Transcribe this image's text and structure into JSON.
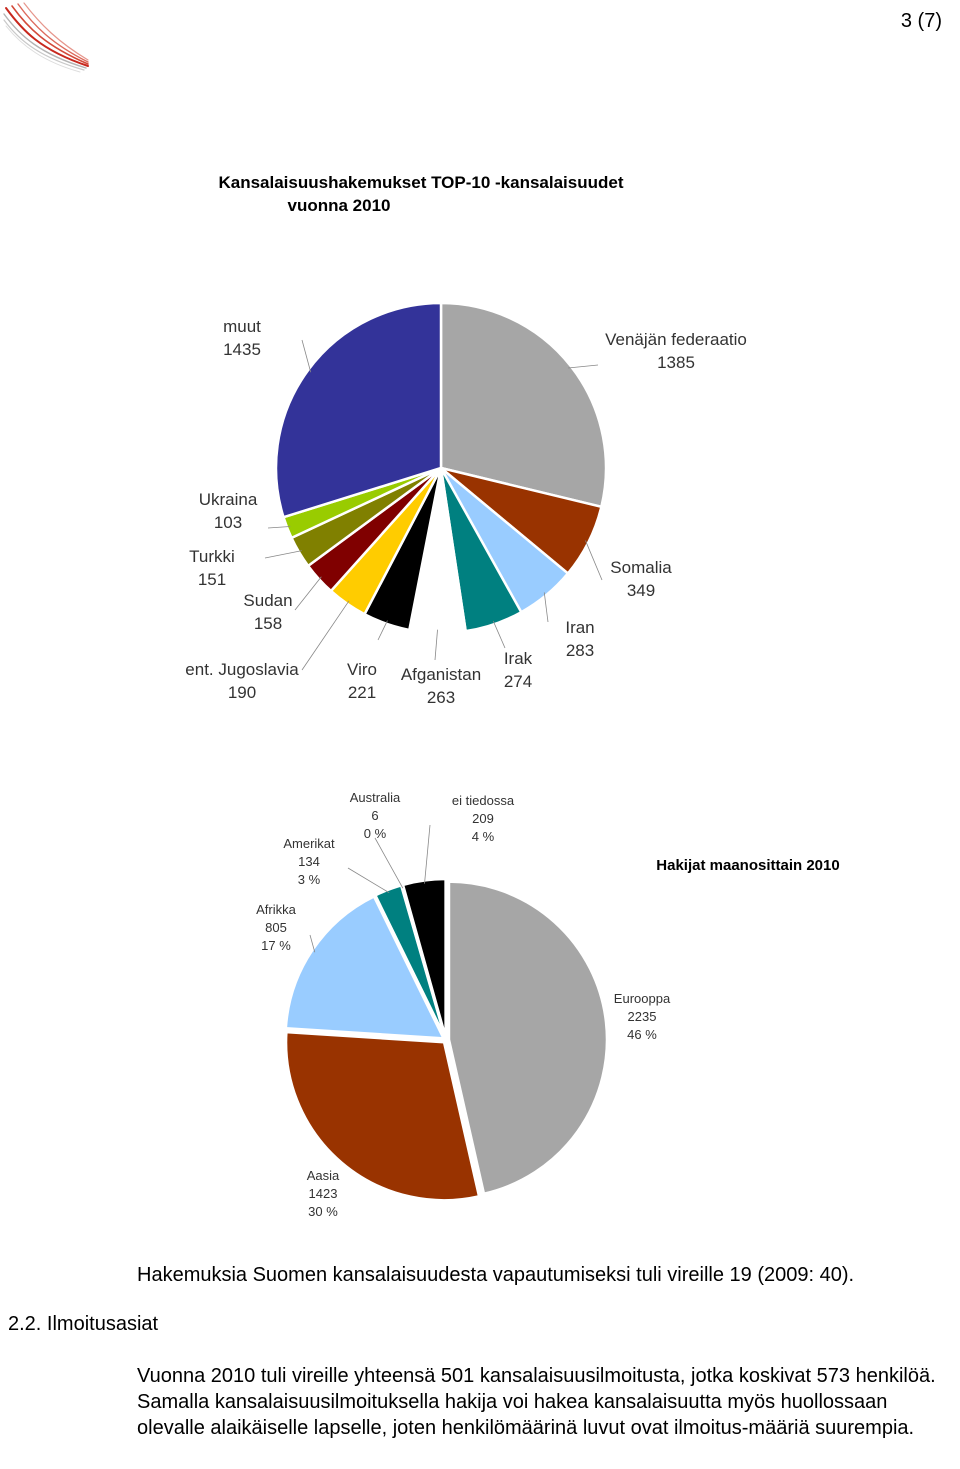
{
  "page": {
    "number": "3 (7)"
  },
  "logo": {
    "icon": "wing-logo-icon"
  },
  "chart_data": [
    {
      "type": "pie",
      "title_line1": "Kansalaisuushakemukset TOP-10 -kansalaisuudet",
      "title_line2": "vuonna 2010",
      "slices": [
        {
          "label": "Venäjän federaatio",
          "value": 1385,
          "color": "#a6a6a6"
        },
        {
          "label": "Somalia",
          "value": 349,
          "color": "#993300"
        },
        {
          "label": "Iran",
          "value": 283,
          "color": "#99ccff"
        },
        {
          "label": "Irak",
          "value": 274,
          "color": "#008080"
        },
        {
          "label": "Afganistan",
          "value": 263,
          "color": "#ffffff"
        },
        {
          "label": "Viro",
          "value": 221,
          "color": "#000000"
        },
        {
          "label": "ent. Jugoslavia",
          "value": 190,
          "color": "#ffcc00"
        },
        {
          "label": "Sudan",
          "value": 158,
          "color": "#800000"
        },
        {
          "label": "Turkki",
          "value": 151,
          "color": "#808000"
        },
        {
          "label": "Ukraina",
          "value": 103,
          "color": "#99cc00"
        },
        {
          "label": "muut",
          "value": 1435,
          "color": "#333399"
        }
      ]
    },
    {
      "type": "pie",
      "title": "Hakijat maanosittain 2010",
      "slices": [
        {
          "label": "Eurooppa",
          "value": 2235,
          "percent": "46 %",
          "color": "#a6a6a6"
        },
        {
          "label": "Aasia",
          "value": 1423,
          "percent": "30 %",
          "color": "#993300"
        },
        {
          "label": "Afrikka",
          "value": 805,
          "percent": "17 %",
          "color": "#99ccff"
        },
        {
          "label": "Amerikat",
          "value": 134,
          "percent": "3 %",
          "color": "#008080"
        },
        {
          "label": "Australia",
          "value": 6,
          "percent": "0 %",
          "color": "#ffffff"
        },
        {
          "label": "ei tiedossa",
          "value": 209,
          "percent": "4 %",
          "color": "#000000"
        }
      ]
    }
  ],
  "text": {
    "paragraph1": "Hakemuksia Suomen kansalaisuudesta vapautumiseksi tuli vireille 19 (2009: 40).",
    "section_heading": "2.2. Ilmoitusasiat",
    "paragraph2": "Vuonna 2010 tuli vireille yhteensä 501 kansalaisuusilmoitusta, jotka koskivat 573 henkilöä. Samalla kansalaisuusilmoituksella hakija voi hakea kansalaisuutta myös huollossaan olevalle alaikäiselle lapselle, joten henkilömäärinä luvut ovat ilmoitus-määriä suurempia."
  }
}
